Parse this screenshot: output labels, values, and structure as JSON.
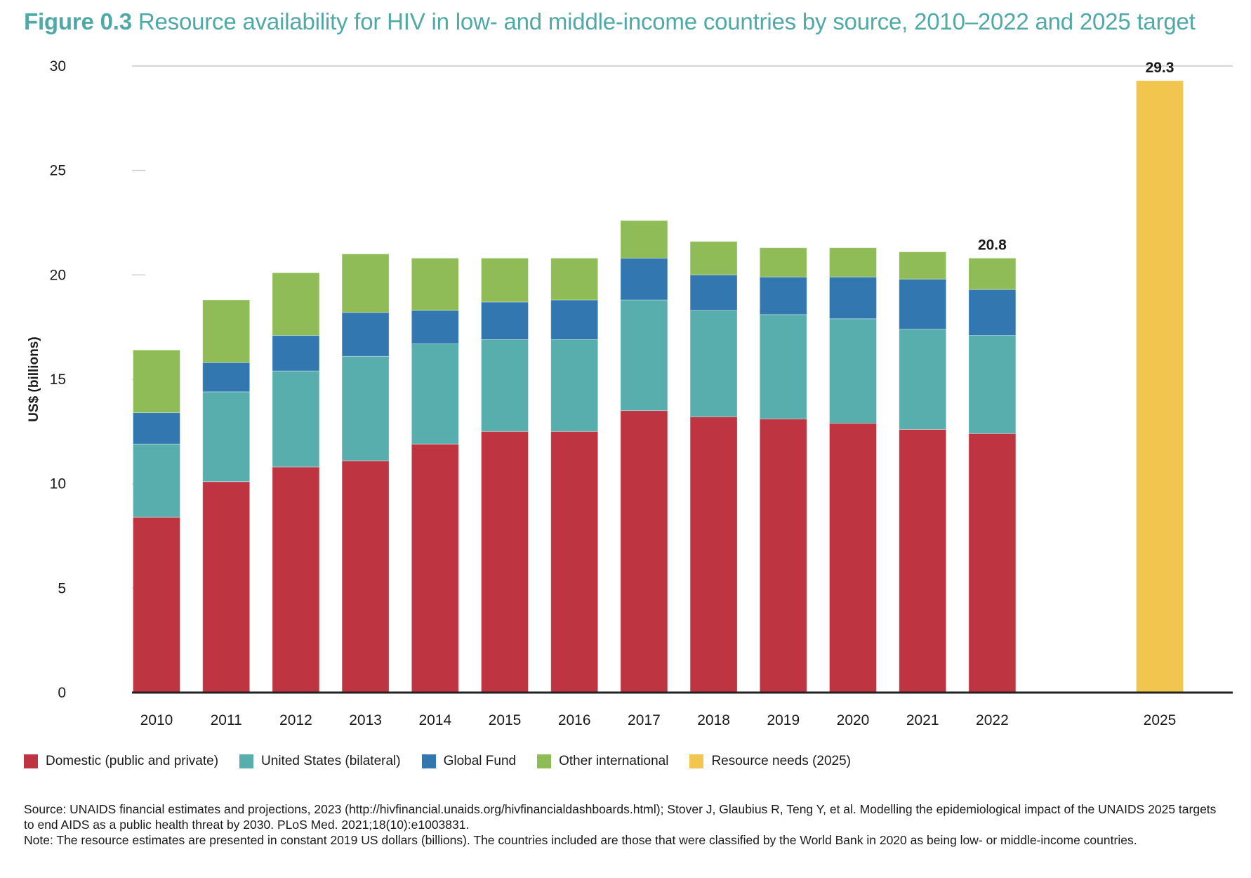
{
  "figure": {
    "number": "Figure 0.3",
    "title": "Resource availability for HIV in low- and middle-income countries by source, 2010–2022 and 2025 target"
  },
  "chart_data": {
    "type": "bar",
    "stacked": true,
    "title": "Resource availability for HIV in low- and middle-income countries by source, 2010–2022 and 2025 target",
    "xlabel": "",
    "ylabel": "US$ (billions)",
    "ylim": [
      0,
      30
    ],
    "yticks": [
      0,
      5,
      10,
      15,
      20,
      25,
      30
    ],
    "grid": "top line only at 30; short tick marks at other values",
    "legend_position": "bottom",
    "categories": [
      "2010",
      "2011",
      "2012",
      "2013",
      "2014",
      "2015",
      "2016",
      "2017",
      "2018",
      "2019",
      "2020",
      "2021",
      "2022",
      "2025"
    ],
    "series": [
      {
        "name": "Domestic (public and private)",
        "color": "#be3440",
        "values": [
          8.4,
          10.1,
          10.8,
          11.1,
          11.9,
          12.5,
          12.5,
          13.5,
          13.2,
          13.1,
          12.9,
          12.6,
          12.4,
          null
        ]
      },
      {
        "name": "United States (bilateral)",
        "color": "#58aead",
        "values": [
          3.5,
          4.3,
          4.6,
          5.0,
          4.8,
          4.4,
          4.4,
          5.3,
          5.1,
          5.0,
          5.0,
          4.8,
          4.7,
          null
        ]
      },
      {
        "name": "Global Fund",
        "color": "#3277b0",
        "values": [
          1.5,
          1.4,
          1.7,
          2.1,
          1.6,
          1.8,
          1.9,
          2.0,
          1.7,
          1.8,
          2.0,
          2.4,
          2.2,
          null
        ]
      },
      {
        "name": "Other international",
        "color": "#8fbc57",
        "values": [
          3.0,
          3.0,
          3.0,
          2.8,
          2.5,
          2.1,
          2.0,
          1.8,
          1.6,
          1.4,
          1.4,
          1.3,
          1.5,
          null
        ]
      },
      {
        "name": "Resource needs (2025)",
        "color": "#f1c54e",
        "values": [
          null,
          null,
          null,
          null,
          null,
          null,
          null,
          null,
          null,
          null,
          null,
          null,
          null,
          29.3
        ]
      }
    ],
    "data_labels": [
      {
        "category": "2022",
        "text": "20.8"
      },
      {
        "category": "2025",
        "text": "29.3"
      }
    ]
  },
  "legend": [
    {
      "label": "Domestic (public and private)",
      "color": "#be3440"
    },
    {
      "label": "United States (bilateral)",
      "color": "#58aead"
    },
    {
      "label": "Global Fund",
      "color": "#3277b0"
    },
    {
      "label": "Other international",
      "color": "#8fbc57"
    },
    {
      "label": "Resource needs (2025)",
      "color": "#f1c54e"
    }
  ],
  "notes": {
    "source": "Source: UNAIDS financial estimates and projections, 2023 (http://hivfinancial.unaids.org/hivfinancialdashboards.html); Stover J, Glaubius R, Teng Y, et al. Modelling the epidemiological impact of the UNAIDS 2025 targets to end AIDS as a public health threat by 2030. PLoS Med. 2021;18(10):e1003831.",
    "note": "Note: The resource estimates are presented in constant 2019 US dollars (billions). The countries included are those that were classified by the World Bank in 2020 as being low- or middle-income countries."
  }
}
